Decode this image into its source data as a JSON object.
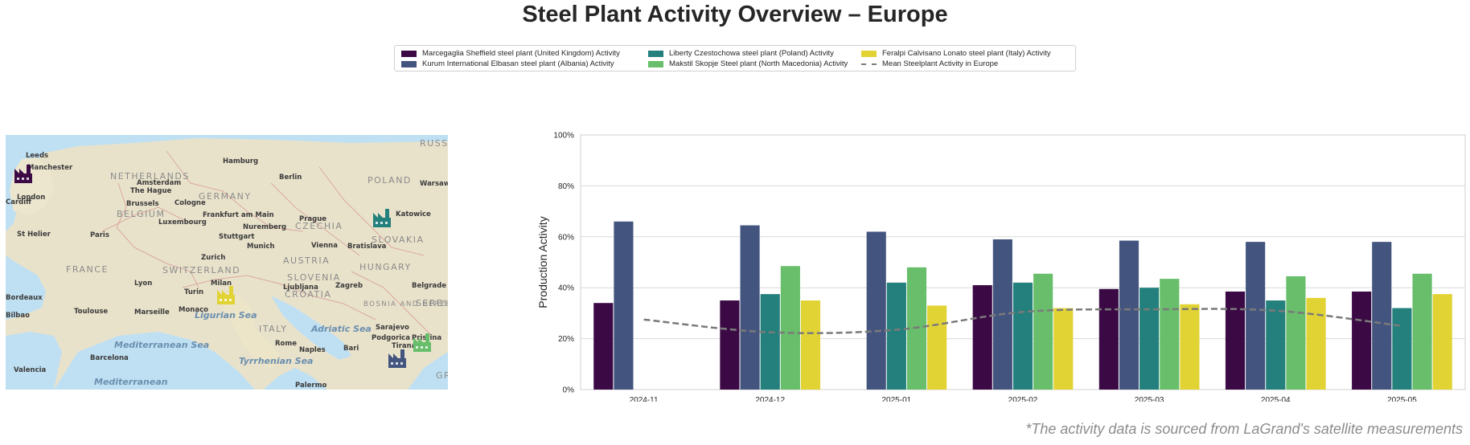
{
  "title": "Steel Plant Activity Overview – Europe",
  "footnote": "*The activity data is sourced from LaGrand's satellite measurements",
  "legend": [
    {
      "label": "Marcegaglia Sheffield steel plant (United Kingdom) Activity",
      "color": "#3b0a45",
      "kind": "bar"
    },
    {
      "label": "Kurum International Elbasan steel plant (Albania) Activity",
      "color": "#43557f",
      "kind": "bar"
    },
    {
      "label": "Liberty Czestochowa steel plant (Poland) Activity",
      "color": "#23807c",
      "kind": "bar"
    },
    {
      "label": "Makstil Skopje Steel plant (North Macedonia) Activity",
      "color": "#68be6b",
      "kind": "bar"
    },
    {
      "label": "Feralpi Calvisano Lonato steel plant (Italy) Activity",
      "color": "#e2d335",
      "kind": "bar"
    },
    {
      "label": "Mean Steelplant Activity in Europe",
      "color": "#7a7a7a",
      "kind": "line"
    }
  ],
  "map": {
    "cities": [
      {
        "name": "Leeds"
      },
      {
        "name": "Manchester"
      },
      {
        "name": "London"
      },
      {
        "name": "Cardiff"
      },
      {
        "name": "NETHERLANDS"
      },
      {
        "name": "Amsterdam"
      },
      {
        "name": "The Hague"
      },
      {
        "name": "Hamburg"
      },
      {
        "name": "Berlin"
      },
      {
        "name": "POLAND"
      },
      {
        "name": "Warsaw"
      },
      {
        "name": "Brussels"
      },
      {
        "name": "Cologne"
      },
      {
        "name": "GERMANY"
      },
      {
        "name": "BELGIUM"
      },
      {
        "name": "Frankfurt am Main"
      },
      {
        "name": "Luxembourg"
      },
      {
        "name": "Nuremberg"
      },
      {
        "name": "Prague"
      },
      {
        "name": "CZECHIA"
      },
      {
        "name": "Katowice"
      },
      {
        "name": "St Helier"
      },
      {
        "name": "Paris"
      },
      {
        "name": "Stuttgart"
      },
      {
        "name": "SLOVAKIA"
      },
      {
        "name": "Munich"
      },
      {
        "name": "Vienna"
      },
      {
        "name": "Bratislava"
      },
      {
        "name": "Zurich"
      },
      {
        "name": "AUSTRIA"
      },
      {
        "name": "HUNGARY"
      },
      {
        "name": "FRANCE"
      },
      {
        "name": "SWITZERLAND"
      },
      {
        "name": "Lyon"
      },
      {
        "name": "Milan"
      },
      {
        "name": "SLOVENIA"
      },
      {
        "name": "Ljubljana"
      },
      {
        "name": "Zagreb"
      },
      {
        "name": "Belgrade"
      },
      {
        "name": "Bordeaux"
      },
      {
        "name": "Turin"
      },
      {
        "name": "CROATIA"
      },
      {
        "name": "Monaco"
      },
      {
        "name": "BOSNIA AND HERZEGOVINA"
      },
      {
        "name": "SERBIA"
      },
      {
        "name": "Toulouse"
      },
      {
        "name": "Marseille"
      },
      {
        "name": "Bilbao"
      },
      {
        "name": "Ligurian Sea"
      },
      {
        "name": "ITALY"
      },
      {
        "name": "Adriatic Sea"
      },
      {
        "name": "Sarajevo"
      },
      {
        "name": "Podgorica"
      },
      {
        "name": "Pristina"
      },
      {
        "name": "Rome"
      },
      {
        "name": "Mediterranean Sea"
      },
      {
        "name": "Barcelona"
      },
      {
        "name": "Naples"
      },
      {
        "name": "Bari"
      },
      {
        "name": "Tirana"
      },
      {
        "name": "Valencia"
      },
      {
        "name": "Tyrrhenian Sea"
      },
      {
        "name": "Mediterranean"
      },
      {
        "name": "Palermo"
      },
      {
        "name": "RUSSIA"
      },
      {
        "name": "GREECE"
      }
    ],
    "plants": [
      {
        "name": "Marcegaglia Sheffield",
        "color": "#3b0a45"
      },
      {
        "name": "Liberty Czestochowa",
        "color": "#23807c"
      },
      {
        "name": "Feralpi Calvisano Lonato",
        "color": "#e2d335"
      },
      {
        "name": "Kurum International Elbasan",
        "color": "#43557f"
      },
      {
        "name": "Makstil Skopje",
        "color": "#68be6b"
      }
    ]
  },
  "chart_data": {
    "type": "bar",
    "ylabel": "Production Activity",
    "xlabel": "",
    "ylim": [
      0,
      100
    ],
    "yticks": [
      "0%",
      "20%",
      "40%",
      "60%",
      "80%",
      "100%"
    ],
    "categories": [
      "2024-11",
      "2024-12",
      "2025-01",
      "2025-02",
      "2025-03",
      "2025-04",
      "2025-05"
    ],
    "series": [
      {
        "name": "Marcegaglia Sheffield steel plant (United Kingdom) Activity",
        "color": "#3b0a45",
        "values": [
          34,
          35,
          null,
          41,
          39.5,
          38.5,
          38.5
        ]
      },
      {
        "name": "Kurum International Elbasan steel plant (Albania) Activity",
        "color": "#43557f",
        "values": [
          66,
          64.5,
          62,
          59,
          58.5,
          58,
          58
        ]
      },
      {
        "name": "Liberty Czestochowa steel plant (Poland) Activity",
        "color": "#23807c",
        "values": [
          null,
          37.5,
          42,
          42,
          40,
          35,
          32
        ]
      },
      {
        "name": "Makstil Skopje Steel plant (North Macedonia) Activity",
        "color": "#68be6b",
        "values": [
          null,
          48.5,
          48,
          45.5,
          43.5,
          44.5,
          45.5
        ]
      },
      {
        "name": "Feralpi Calvisano Lonato steel plant (Italy) Activity",
        "color": "#e2d335",
        "values": [
          null,
          35,
          33,
          32,
          33.5,
          36,
          37.5
        ]
      }
    ],
    "mean_line": {
      "name": "Mean Steelplant Activity in Europe",
      "color": "#7a7a7a",
      "values": [
        27.5,
        22.5,
        23.5,
        30.5,
        31.5,
        31,
        25
      ]
    },
    "grid": true,
    "legend_position": "top-center"
  }
}
